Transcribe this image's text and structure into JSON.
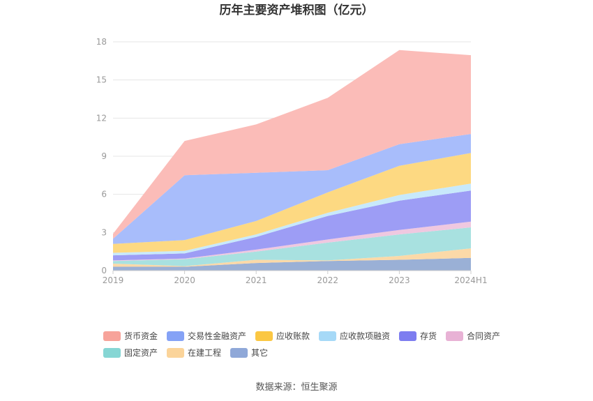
{
  "chart_data": {
    "type": "area",
    "stacked": true,
    "title": "历年主要资产堆积图（亿元）",
    "source": "数据来源：恒生聚源",
    "xlabel": "",
    "ylabel": "",
    "categories": [
      "2019",
      "2020",
      "2021",
      "2022",
      "2023",
      "2024H1"
    ],
    "ylim": [
      0,
      18
    ],
    "yticks": [
      0,
      3,
      6,
      9,
      12,
      15,
      18
    ],
    "grid": true,
    "legend_position": "bottom",
    "series": [
      {
        "name": "其它",
        "color": "#9ab0d6",
        "values": [
          0.3,
          0.3,
          0.6,
          0.75,
          0.85,
          1.0
        ]
      },
      {
        "name": "在建工程",
        "color": "#fbd9a8",
        "values": [
          0.25,
          0.05,
          0.25,
          0.05,
          0.3,
          0.75
        ]
      },
      {
        "name": "固定资产",
        "color": "#a8e1e0",
        "values": [
          0.2,
          0.55,
          0.65,
          1.4,
          1.7,
          1.65
        ]
      },
      {
        "name": "合同资产",
        "color": "#efc8e0",
        "values": [
          0.05,
          0.05,
          0.15,
          0.25,
          0.35,
          0.45
        ]
      },
      {
        "name": "存货",
        "color": "#9d9df5",
        "values": [
          0.4,
          0.4,
          1.0,
          1.85,
          2.3,
          2.45
        ]
      },
      {
        "name": "应收款项融资",
        "color": "#c8e9fb",
        "values": [
          0.2,
          0.2,
          0.2,
          0.25,
          0.45,
          0.55
        ]
      },
      {
        "name": "应收账款",
        "color": "#fdd982",
        "values": [
          0.7,
          0.85,
          1.05,
          1.6,
          2.3,
          2.4
        ]
      },
      {
        "name": "交易性金融资产",
        "color": "#a8bdfb",
        "values": [
          0.4,
          5.1,
          3.8,
          1.75,
          1.7,
          1.5
        ]
      },
      {
        "name": "货币资金",
        "color": "#fbbcb8",
        "values": [
          0.4,
          2.7,
          3.8,
          5.7,
          7.4,
          6.2
        ]
      }
    ],
    "legend": [
      {
        "name": "货币资金",
        "color": "#f7a39a"
      },
      {
        "name": "交易性金融资产",
        "color": "#85a2f6"
      },
      {
        "name": "应收账款",
        "color": "#fbc743"
      },
      {
        "name": "应收款项融资",
        "color": "#a6d9f7"
      },
      {
        "name": "存货",
        "color": "#7d7df0"
      },
      {
        "name": "合同资产",
        "color": "#e8b2d5"
      },
      {
        "name": "固定资产",
        "color": "#86d6d4"
      },
      {
        "name": "在建工程",
        "color": "#fbd49a"
      },
      {
        "name": "其它",
        "color": "#8fa8d8"
      }
    ]
  }
}
